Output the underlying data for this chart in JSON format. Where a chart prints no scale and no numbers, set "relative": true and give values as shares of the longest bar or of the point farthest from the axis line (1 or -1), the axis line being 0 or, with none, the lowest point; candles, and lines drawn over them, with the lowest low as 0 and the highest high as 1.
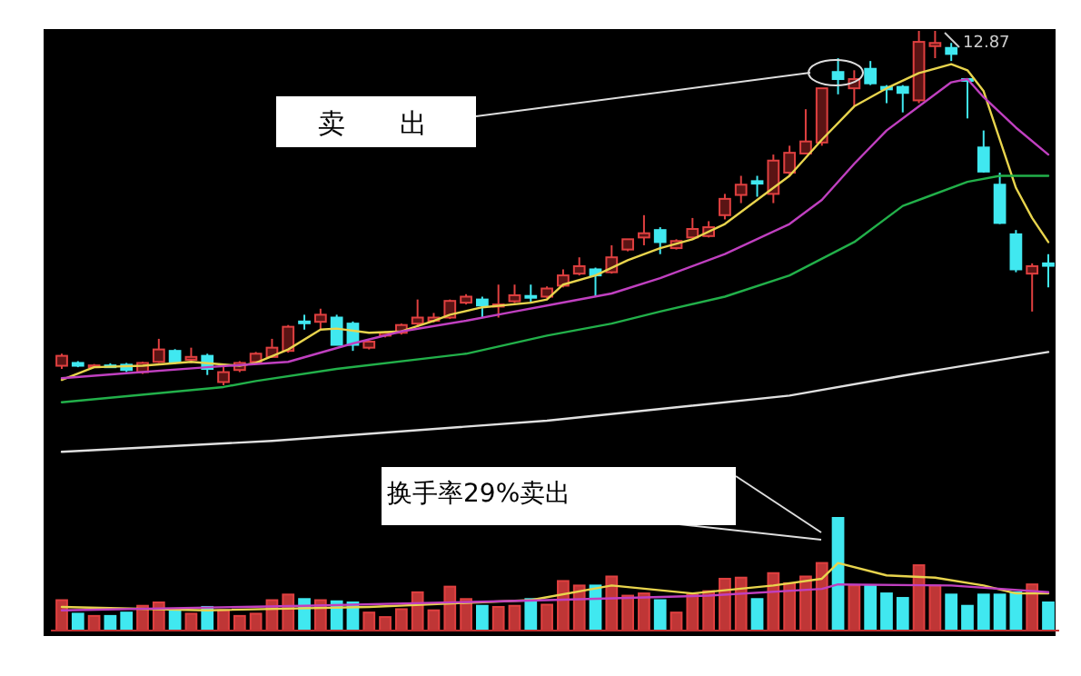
{
  "chart_data": [
    {
      "type": "candlestick",
      "relative": true,
      "categories": [
        null,
        null,
        null,
        null,
        null,
        null,
        null,
        null,
        null,
        null,
        null,
        null,
        null,
        null,
        null,
        null,
        null,
        null,
        null,
        null,
        null,
        null,
        null,
        null,
        null,
        null,
        null,
        null,
        null,
        null,
        null,
        null,
        null,
        null,
        null,
        null,
        null,
        null,
        null,
        null,
        null,
        null,
        null,
        null,
        null,
        null,
        null,
        null,
        null,
        null,
        null,
        null,
        null,
        null,
        null,
        null,
        null,
        null,
        null,
        null,
        null,
        null
      ],
      "ohlc": [
        [
          0.055,
          0.089,
          0.046,
          0.083
        ],
        [
          0.063,
          0.068,
          0.051,
          0.055
        ],
        [
          0.055,
          0.06,
          0.05,
          0.056
        ],
        [
          0.056,
          0.062,
          0.05,
          0.055
        ],
        [
          0.058,
          0.063,
          0.037,
          0.043
        ],
        [
          0.037,
          0.066,
          0.032,
          0.063
        ],
        [
          0.066,
          0.131,
          0.063,
          0.101
        ],
        [
          0.097,
          0.102,
          0.06,
          0.066
        ],
        [
          0.072,
          0.106,
          0.063,
          0.08
        ],
        [
          0.083,
          0.089,
          0.029,
          0.046
        ],
        [
          0.009,
          0.055,
          0,
          0.037
        ],
        [
          0.043,
          0.068,
          0.037,
          0.063
        ],
        [
          0.066,
          0.094,
          0.06,
          0.089
        ],
        [
          0.08,
          0.131,
          0.077,
          0.106
        ],
        [
          0.097,
          0.17,
          0.092,
          0.165
        ],
        [
          0.18,
          0.199,
          0.157,
          0.175
        ],
        [
          0.179,
          0.216,
          0.157,
          0.199
        ],
        [
          0.191,
          0.199,
          0.114,
          0.114
        ],
        [
          0.174,
          0.18,
          0.097,
          0.114
        ],
        [
          0.106,
          0.126,
          0.101,
          0.123
        ],
        [
          0.14,
          0.152,
          0.135,
          0.148
        ],
        [
          0.148,
          0.174,
          0.143,
          0.17
        ],
        [
          0.174,
          0.242,
          0.165,
          0.191
        ],
        [
          0.182,
          0.204,
          0.177,
          0.191
        ],
        [
          0.191,
          0.242,
          0.187,
          0.238
        ],
        [
          0.233,
          0.257,
          0.228,
          0.25
        ],
        [
          0.242,
          0.25,
          0.191,
          0.225
        ],
        [
          0.222,
          0.284,
          0.191,
          0.228
        ],
        [
          0.237,
          0.284,
          0.232,
          0.254
        ],
        [
          0.252,
          0.284,
          0.233,
          0.247
        ],
        [
          0.25,
          0.279,
          0.245,
          0.273
        ],
        [
          0.281,
          0.327,
          0.276,
          0.31
        ],
        [
          0.315,
          0.361,
          0.31,
          0.336
        ],
        [
          0.327,
          0.332,
          0.25,
          0.31
        ],
        [
          0.319,
          0.395,
          0.315,
          0.361
        ],
        [
          0.383,
          0.412,
          0.378,
          0.412
        ],
        [
          0.417,
          0.48,
          0.395,
          0.429
        ],
        [
          0.438,
          0.446,
          0.37,
          0.404
        ],
        [
          0.387,
          0.412,
          0.383,
          0.407
        ],
        [
          0.417,
          0.472,
          0.412,
          0.441
        ],
        [
          0.421,
          0.463,
          0.417,
          0.446
        ],
        [
          0.48,
          0.54,
          0.468,
          0.526
        ],
        [
          0.537,
          0.591,
          0.514,
          0.566
        ],
        [
          0.576,
          0.591,
          0.532,
          0.569
        ],
        [
          0.54,
          0.651,
          0.514,
          0.634
        ],
        [
          0.6,
          0.676,
          0.591,
          0.656
        ],
        [
          0.654,
          0.779,
          0.654,
          0.688
        ],
        [
          0.685,
          0.838,
          0.676,
          0.838
        ],
        [
          0.884,
          0.923,
          0.821,
          0.864
        ],
        [
          0.838,
          0.889,
          0.787,
          0.864
        ],
        [
          0.893,
          0.915,
          0.847,
          0.852
        ],
        [
          0.842,
          0.847,
          0.796,
          0.835
        ],
        [
          0.842,
          0.847,
          0.77,
          0.825
        ],
        [
          0.804,
          1.0,
          0.796,
          0.969
        ],
        [
          0.957,
          1.0,
          0.923,
          0.966
        ],
        [
          0.952,
          0.966,
          0.915,
          0.935
        ],
        [
          0.864,
          0.864,
          0.753,
          0.86
        ],
        [
          0.671,
          0.719,
          0.6,
          0.603
        ],
        [
          0.566,
          0.6,
          0.455,
          0.458
        ],
        [
          0.426,
          0.438,
          0.319,
          0.327
        ],
        [
          0.315,
          0.344,
          0.208,
          0.336
        ],
        [
          0.344,
          0.37,
          0.276,
          0.337
        ]
      ],
      "series": [
        {
          "type": "line",
          "color": "#e8d44d",
          "values": [
            0.015,
            null,
            0.051,
            null,
            null,
            0.055,
            null,
            null,
            0.066,
            null,
            null,
            0.055,
            0.063,
            null,
            0.101,
            null,
            0.157,
            0.16,
            null,
            0.148,
            null,
            0.152,
            null,
            0.182,
            0.199,
            null,
            0.22,
            null,
            null,
            0.233,
            0.242,
            0.284,
            null,
            0.31,
            null,
            0.353,
            null,
            0.387,
            null,
            0.412,
            null,
            0.455,
            null,
            0.523,
            null,
            0.591,
            null,
            0.693,
            null,
            0.787,
            null,
            0.838,
            null,
            0.881,
            null,
            0.906,
            0.889,
            0.83,
            0.693,
            0.557,
            0.472,
            0.404
          ]
        },
        {
          "type": "line",
          "color": "#c040c0",
          "values": [
            0.02,
            null,
            null,
            null,
            0.034,
            null,
            null,
            null,
            null,
            0.051,
            null,
            null,
            null,
            null,
            0.066,
            null,
            null,
            null,
            0.118,
            null,
            null,
            0.152,
            null,
            null,
            null,
            0.182,
            null,
            null,
            0.208,
            null,
            0.225,
            null,
            null,
            null,
            0.259,
            null,
            null,
            0.302,
            null,
            null,
            null,
            0.37,
            null,
            null,
            null,
            0.455,
            null,
            0.523,
            null,
            0.625,
            null,
            0.719,
            null,
            0.787,
            null,
            0.855,
            0.864,
            0.813,
            null,
            0.727,
            null,
            0.651
          ]
        },
        {
          "type": "line",
          "color": "#22b04a",
          "values": [
            -0.048,
            null,
            null,
            null,
            null,
            null,
            null,
            null,
            null,
            null,
            -0.005,
            null,
            0.012,
            null,
            null,
            null,
            null,
            0.046,
            null,
            null,
            null,
            null,
            null,
            null,
            null,
            0.089,
            null,
            null,
            null,
            null,
            0.14,
            null,
            null,
            null,
            0.174,
            null,
            null,
            0.208,
            null,
            null,
            null,
            0.25,
            null,
            null,
            null,
            0.31,
            null,
            null,
            null,
            0.404,
            null,
            null,
            0.506,
            null,
            null,
            null,
            0.574,
            null,
            0.591,
            null,
            null,
            0.591
          ]
        },
        {
          "type": "line",
          "color": "#e0e0e0",
          "values": [
            -0.188,
            null,
            null,
            null,
            null,
            null,
            null,
            null,
            null,
            null,
            null,
            null,
            null,
            -0.157,
            null,
            null,
            null,
            null,
            null,
            null,
            null,
            null,
            null,
            null,
            null,
            null,
            null,
            null,
            null,
            null,
            -0.1,
            null,
            null,
            null,
            null,
            null,
            null,
            null,
            null,
            null,
            null,
            null,
            null,
            null,
            null,
            -0.029,
            null,
            null,
            null,
            null,
            null,
            null,
            0.027,
            null,
            null,
            null,
            null,
            null,
            null,
            null,
            null,
            0.094
          ]
        }
      ],
      "annotations": [
        "卖　　出",
        "12.87"
      ]
    },
    {
      "type": "bar",
      "relative": true,
      "categories": [
        null,
        null,
        null,
        null,
        null,
        null,
        null,
        null,
        null,
        null,
        null,
        null,
        null,
        null,
        null,
        null,
        null,
        null,
        null,
        null,
        null,
        null,
        null,
        null,
        null,
        null,
        null,
        null,
        null,
        null,
        null,
        null,
        null,
        null,
        null,
        null,
        null,
        null,
        null,
        null,
        null,
        null,
        null,
        null,
        null,
        null,
        null,
        null,
        null,
        null,
        null,
        null,
        null,
        null,
        null,
        null,
        null,
        null,
        null,
        null,
        null,
        null
      ],
      "values": [
        0.27,
        0.15,
        0.13,
        0.13,
        0.16,
        0.22,
        0.25,
        0.18,
        0.15,
        0.21,
        0.18,
        0.13,
        0.15,
        0.27,
        0.32,
        0.28,
        0.27,
        0.26,
        0.25,
        0.16,
        0.12,
        0.19,
        0.34,
        0.18,
        0.39,
        0.28,
        0.22,
        0.21,
        0.22,
        0.28,
        0.23,
        0.44,
        0.4,
        0.4,
        0.48,
        0.31,
        0.33,
        0.27,
        0.16,
        0.32,
        0.35,
        0.46,
        0.47,
        0.28,
        0.51,
        0.42,
        0.48,
        0.6,
        1.0,
        0.4,
        0.4,
        0.33,
        0.29,
        0.58,
        0.4,
        0.32,
        0.22,
        0.32,
        0.32,
        0.34,
        0.41,
        0.25
      ],
      "colors": [
        "#e04040",
        "#40e8f0",
        "#e04040",
        "#40e8f0",
        "#40e8f0",
        "#e04040",
        "#e04040",
        "#40e8f0",
        "#e04040",
        "#40e8f0",
        "#e04040",
        "#e04040",
        "#e04040",
        "#e04040",
        "#e04040",
        "#40e8f0",
        "#e04040",
        "#40e8f0",
        "#40e8f0",
        "#e04040",
        "#e04040",
        "#e04040",
        "#e04040",
        "#e04040",
        "#e04040",
        "#e04040",
        "#40e8f0",
        "#e04040",
        "#e04040",
        "#40e8f0",
        "#e04040",
        "#e04040",
        "#e04040",
        "#40e8f0",
        "#e04040",
        "#e04040",
        "#e04040",
        "#40e8f0",
        "#e04040",
        "#e04040",
        "#e04040",
        "#e04040",
        "#e04040",
        "#40e8f0",
        "#e04040",
        "#e04040",
        "#e04040",
        "#e04040",
        "#40e8f0",
        "#e04040",
        "#40e8f0",
        "#40e8f0",
        "#40e8f0",
        "#e04040",
        "#e04040",
        "#40e8f0",
        "#40e8f0",
        "#40e8f0",
        "#40e8f0",
        "#40e8f0",
        "#e04040",
        "#40e8f0"
      ],
      "annotations": [
        "换手率29%卖出"
      ]
    },
    {
      "type": "line",
      "relative": true,
      "categories": [
        null,
        null,
        null,
        null,
        null,
        null,
        null,
        null,
        null,
        null,
        null,
        null,
        null,
        null,
        null,
        null,
        null,
        null,
        null,
        null,
        null,
        null,
        null,
        null,
        null,
        null,
        null,
        null,
        null,
        null,
        null,
        null,
        null,
        null,
        null,
        null,
        null,
        null,
        null,
        null,
        null,
        null,
        null,
        null,
        null,
        null,
        null,
        null,
        null,
        null,
        null,
        null,
        null,
        null,
        null,
        null,
        null,
        null,
        null,
        null,
        null,
        null
      ],
      "series": [
        {
          "color": "#e8d44d",
          "values": [
            0.35,
            null,
            null,
            null,
            null,
            null,
            null,
            null,
            null,
            0.3,
            null,
            null,
            null,
            null,
            null,
            null,
            null,
            null,
            null,
            0.35,
            null,
            null,
            null,
            null,
            null,
            null,
            null,
            null,
            null,
            0.45,
            null,
            null,
            null,
            null,
            0.667,
            null,
            null,
            null,
            null,
            0.55,
            null,
            null,
            null,
            null,
            0.667,
            null,
            null,
            0.767,
            1.0,
            null,
            null,
            0.817,
            null,
            null,
            0.783,
            null,
            null,
            0.667,
            null,
            0.55,
            null,
            0.55
          ]
        },
        {
          "color": "#c040c0",
          "values": [
            0.3,
            null,
            null,
            null,
            null,
            null,
            null,
            null,
            null,
            null,
            null,
            null,
            null,
            null,
            null,
            0.367,
            null,
            null,
            null,
            null,
            null,
            null,
            null,
            null,
            null,
            null,
            null,
            null,
            null,
            null,
            0.45,
            null,
            null,
            null,
            null,
            null,
            null,
            null,
            null,
            null,
            0.517,
            null,
            null,
            null,
            null,
            null,
            null,
            0.617,
            0.683,
            null,
            null,
            null,
            null,
            null,
            null,
            0.667,
            null,
            null,
            null,
            null,
            null,
            0.567
          ]
        }
      ]
    }
  ]
}
